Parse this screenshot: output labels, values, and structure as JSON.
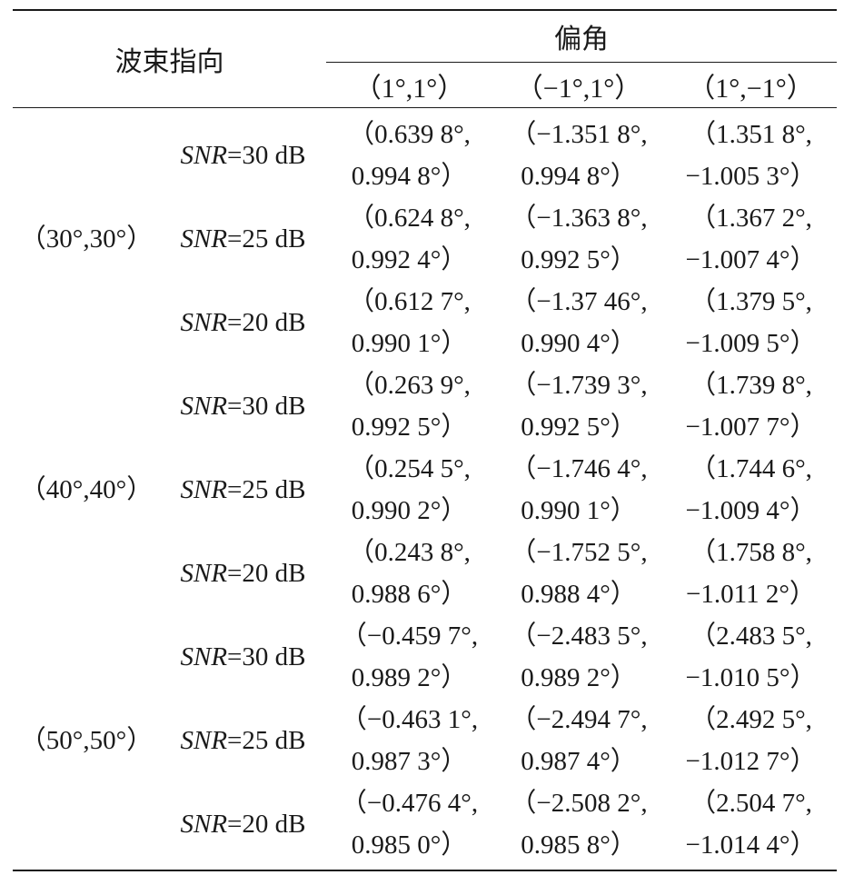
{
  "header": {
    "beam_direction": "波束指向",
    "offset_angle": "偏角",
    "col1": "（1°,1°）",
    "col2": "（−1°,1°）",
    "col3": "（1°,−1°）"
  },
  "groups": [
    {
      "direction": "（30°,30°）",
      "rows": [
        {
          "snr_label": "SNR",
          "snr_value": "=30 dB",
          "c1a": "（0.639 8°,",
          "c1b": "0.994 8°）",
          "c2a": "（−1.351 8°,",
          "c2b": "0.994 8°）",
          "c3a": "（1.351 8°,",
          "c3b": "−1.005 3°）"
        },
        {
          "snr_label": "SNR",
          "snr_value": "=25 dB",
          "c1a": "（0.624 8°,",
          "c1b": "0.992 4°）",
          "c2a": "（−1.363 8°,",
          "c2b": "0.992 5°）",
          "c3a": "（1.367 2°,",
          "c3b": "−1.007 4°）"
        },
        {
          "snr_label": "SNR",
          "snr_value": "=20 dB",
          "c1a": "（0.612 7°,",
          "c1b": "0.990 1°）",
          "c2a": "（−1.37 46°,",
          "c2b": "0.990 4°）",
          "c3a": "（1.379 5°,",
          "c3b": "−1.009 5°）"
        }
      ]
    },
    {
      "direction": "（40°,40°）",
      "rows": [
        {
          "snr_label": "SNR",
          "snr_value": "=30 dB",
          "c1a": "（0.263 9°,",
          "c1b": "0.992 5°）",
          "c2a": "（−1.739 3°,",
          "c2b": "0.992 5°）",
          "c3a": "（1.739 8°,",
          "c3b": "−1.007 7°）"
        },
        {
          "snr_label": "SNR",
          "snr_value": "=25 dB",
          "c1a": "（0.254 5°,",
          "c1b": "0.990 2°）",
          "c2a": "（−1.746 4°,",
          "c2b": "0.990 1°）",
          "c3a": "（1.744 6°,",
          "c3b": "−1.009 4°）"
        },
        {
          "snr_label": "SNR",
          "snr_value": "=20 dB",
          "c1a": "（0.243 8°,",
          "c1b": "0.988 6°）",
          "c2a": "（−1.752 5°,",
          "c2b": "0.988 4°）",
          "c3a": "（1.758 8°,",
          "c3b": "−1.011 2°）"
        }
      ]
    },
    {
      "direction": "（50°,50°）",
      "rows": [
        {
          "snr_label": "SNR",
          "snr_value": "=30 dB",
          "c1a": "（−0.459 7°,",
          "c1b": "0.989 2°）",
          "c2a": "（−2.483 5°,",
          "c2b": "0.989 2°）",
          "c3a": "（2.483 5°,",
          "c3b": "−1.010 5°）"
        },
        {
          "snr_label": "SNR",
          "snr_value": "=25 dB",
          "c1a": "（−0.463 1°,",
          "c1b": "0.987 3°）",
          "c2a": "（−2.494 7°,",
          "c2b": "0.987 4°）",
          "c3a": "（2.492 5°,",
          "c3b": "−1.012 7°）"
        },
        {
          "snr_label": "SNR",
          "snr_value": "=20 dB",
          "c1a": "（−0.476 4°,",
          "c1b": "0.985 0°）",
          "c2a": "（−2.508 2°,",
          "c2b": "0.985 8°）",
          "c3a": "（2.504 7°,",
          "c3b": "−1.014 4°）"
        }
      ]
    }
  ]
}
